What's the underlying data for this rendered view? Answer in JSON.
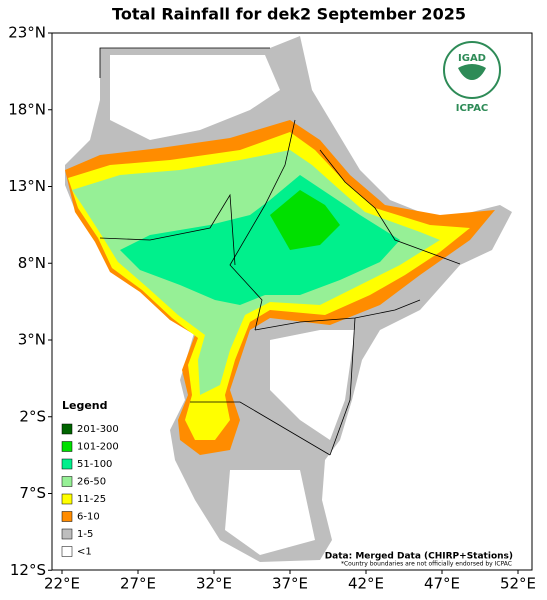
{
  "map": {
    "title": "Total Rainfall for dek2 September 2025",
    "lat_ticks": [
      {
        "value": 23,
        "label": "23°N"
      },
      {
        "value": 18,
        "label": "18°N"
      },
      {
        "value": 13,
        "label": "13°N"
      },
      {
        "value": 8,
        "label": "8°N"
      },
      {
        "value": 3,
        "label": "3°N"
      },
      {
        "value": -2,
        "label": "2°S"
      },
      {
        "value": -7,
        "label": "7°S"
      },
      {
        "value": -12,
        "label": "12°S"
      }
    ],
    "lon_ticks": [
      {
        "value": 22,
        "label": "22°E"
      },
      {
        "value": 27,
        "label": "27°E"
      },
      {
        "value": 32,
        "label": "32°E"
      },
      {
        "value": 37,
        "label": "37°E"
      },
      {
        "value": 42,
        "label": "42°E"
      },
      {
        "value": 47,
        "label": "47°E"
      },
      {
        "value": 52,
        "label": "52°E"
      }
    ],
    "legend": {
      "title": "Legend",
      "items": [
        {
          "label": "201-300",
          "color": "#006400"
        },
        {
          "label": "101-200",
          "color": "#00e000"
        },
        {
          "label": "51-100",
          "color": "#00f08c"
        },
        {
          "label": "26-50",
          "color": "#96f096"
        },
        {
          "label": "11-25",
          "color": "#ffff00"
        },
        {
          "label": "6-10",
          "color": "#ff8c00"
        },
        {
          "label": "1-5",
          "color": "#bebebe"
        },
        {
          "label": "<1",
          "color": "#ffffff"
        }
      ]
    },
    "logo": {
      "top": "IGAD",
      "bottom": "ICPAC"
    },
    "source": "Data: Merged Data (CHIRP+Stations)",
    "disclaimer": "*Country boundaries are not officially endorsed by ICPAC"
  }
}
